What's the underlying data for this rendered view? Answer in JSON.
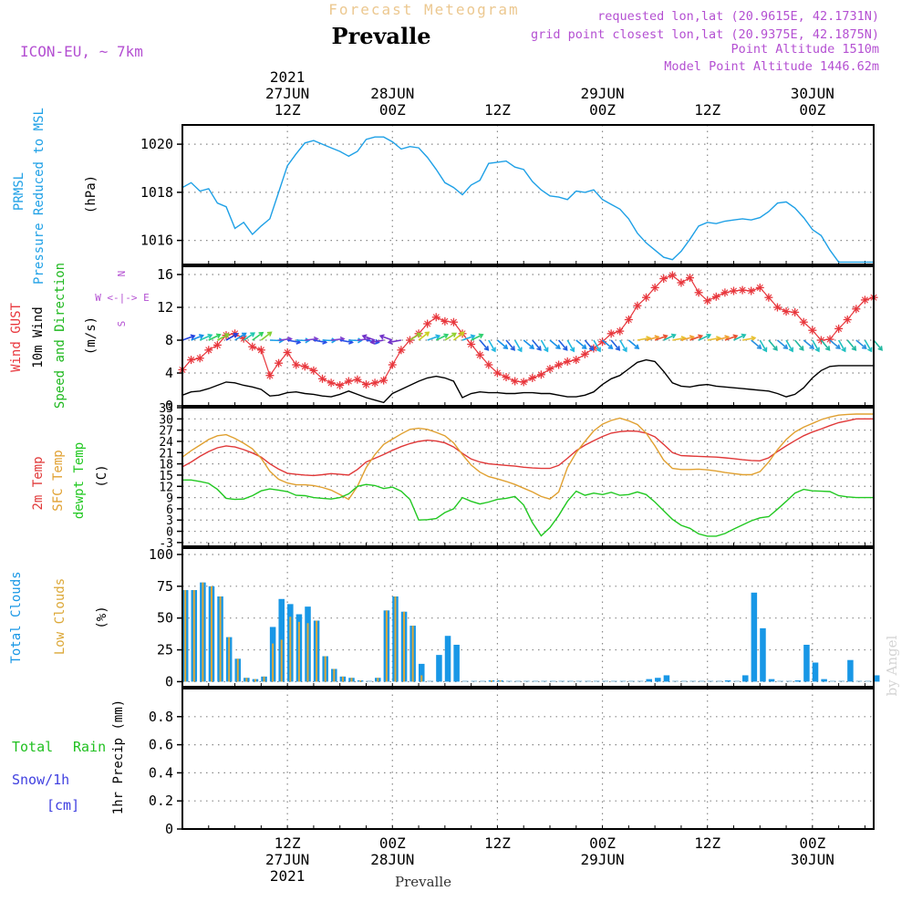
{
  "header": {
    "subtitle": "Forecast Meteogram",
    "title": "Prevalle",
    "model": "ICON-EU, ~ 7km",
    "requested": "requested lon,lat (20.9615E, 42.1731N)",
    "grid": "grid point closest lon,lat (20.9375E, 42.1875N)",
    "point_altitude": "Point Altitude 1510m",
    "model_altitude": "Model Point Altitude 1446.62m",
    "footer": "Prevalle",
    "watermark": "by Angel"
  },
  "colors": {
    "pressure": "#1ea0e6",
    "gust": "#e8363c",
    "wind": "#000000",
    "wind_dir": "#1fb81f",
    "temp2m": "#e03838",
    "sfc": "#e0a030",
    "dewpt": "#22c822",
    "total_clouds": "#1897e6",
    "low_clouds": "#dca838",
    "rain": "#20c020",
    "snow": "#4040e0",
    "meta": "#b450d2",
    "subtitle": "#ecc890"
  },
  "time_axis": {
    "top_labels": [
      {
        "t": 12,
        "lines": [
          "2021",
          "27JUN",
          "12Z"
        ]
      },
      {
        "t": 24,
        "lines": [
          "28JUN",
          "00Z"
        ]
      },
      {
        "t": 36,
        "lines": [
          "12Z"
        ]
      },
      {
        "t": 48,
        "lines": [
          "29JUN",
          "00Z"
        ]
      },
      {
        "t": 60,
        "lines": [
          "12Z"
        ]
      },
      {
        "t": 72,
        "lines": [
          "30JUN",
          "00Z"
        ]
      }
    ],
    "bottom_labels": [
      {
        "t": 12,
        "lines": [
          "12Z",
          "27JUN",
          "2021"
        ]
      },
      {
        "t": 24,
        "lines": [
          "00Z",
          "28JUN"
        ]
      },
      {
        "t": 36,
        "lines": [
          "12Z"
        ]
      },
      {
        "t": 48,
        "lines": [
          "00Z",
          "29JUN"
        ]
      },
      {
        "t": 60,
        "lines": [
          "12Z"
        ]
      },
      {
        "t": 72,
        "lines": [
          "00Z",
          "30JUN"
        ]
      }
    ]
  },
  "panels": {
    "pressure": {
      "label1": "PRMSL",
      "label2": "Pressure Reduced to MSL",
      "unit": "(hPa)"
    },
    "wind": {
      "label1": "Wind GUST",
      "label2": "10m Wind",
      "label3": "Speed and Direction",
      "unit": "(m/s)",
      "compass_n": "N",
      "compass_we": "W <-|-> E",
      "compass_s": "S"
    },
    "temp": {
      "label1": "2m Temp",
      "label2": "SFC Temp",
      "label3": "dewpt Temp",
      "unit": "(C)"
    },
    "clouds": {
      "label1": "Total Clouds",
      "label2": "Low Clouds",
      "unit": "(%)"
    },
    "precip": {
      "label1": "Total",
      "label1b": "Rain",
      "label2": "Snow/1h",
      "label3": "[cm]",
      "unit": "1hr Precip (mm)"
    }
  },
  "chart_data": [
    {
      "type": "line",
      "title": "PRMSL Pressure Reduced to MSL",
      "ylabel": "(hPa)",
      "ylim": [
        1015.0,
        1020.8
      ],
      "yticks": [
        1016,
        1018,
        1020
      ],
      "x_hours": [
        0,
        1,
        2,
        3,
        4,
        5,
        6,
        7,
        8,
        9,
        10,
        11,
        12,
        13,
        14,
        15,
        16,
        17,
        18,
        19,
        20,
        21,
        22,
        23,
        24,
        25,
        26,
        27,
        28,
        29,
        30,
        31,
        32,
        33,
        34,
        35,
        36,
        37,
        38,
        39,
        40,
        41,
        42,
        43,
        44,
        45,
        46,
        47,
        48,
        49,
        50,
        51,
        52,
        53,
        54,
        55,
        56,
        57,
        58,
        59,
        60,
        61,
        62,
        63,
        64,
        65,
        66,
        67,
        68,
        69,
        70,
        71,
        72,
        73,
        74,
        75,
        76,
        77,
        78,
        79
      ],
      "values": [
        1018.2,
        1018.4,
        1018.05,
        1018.15,
        1017.55,
        1017.4,
        1016.5,
        1016.75,
        1016.25,
        1016.6,
        1016.9,
        1018.0,
        1019.1,
        1019.6,
        1020.05,
        1020.15,
        1020.0,
        1019.85,
        1019.7,
        1019.5,
        1019.7,
        1020.2,
        1020.3,
        1020.3,
        1020.1,
        1019.8,
        1019.9,
        1019.85,
        1019.45,
        1018.95,
        1018.4,
        1018.2,
        1017.9,
        1018.3,
        1018.5,
        1019.2,
        1019.25,
        1019.3,
        1019.05,
        1018.95,
        1018.45,
        1018.1,
        1017.85,
        1017.8,
        1017.7,
        1018.05,
        1018.0,
        1018.1,
        1017.7,
        1017.5,
        1017.3,
        1016.9,
        1016.3,
        1015.9,
        1015.6,
        1015.3,
        1015.2,
        1015.55,
        1016.05,
        1016.6,
        1016.75,
        1016.7,
        1016.8,
        1016.85,
        1016.9,
        1016.85,
        1016.95,
        1017.2,
        1017.55,
        1017.6,
        1017.35,
        1016.95,
        1016.45,
        1016.2,
        1015.6,
        1015.1,
        1015.1,
        1015.1,
        1015.1,
        1015.1
      ]
    },
    {
      "type": "line",
      "title": "Wind GUST / 10m Wind Speed and Direction",
      "ylabel": "(m/s)",
      "ylim": [
        0,
        17
      ],
      "yticks": [
        0,
        4,
        8,
        12,
        16
      ],
      "x_hours": [
        0,
        1,
        2,
        3,
        4,
        5,
        6,
        7,
        8,
        9,
        10,
        11,
        12,
        13,
        14,
        15,
        16,
        17,
        18,
        19,
        20,
        21,
        22,
        23,
        24,
        25,
        26,
        27,
        28,
        29,
        30,
        31,
        32,
        33,
        34,
        35,
        36,
        37,
        38,
        39,
        40,
        41,
        42,
        43,
        44,
        45,
        46,
        47,
        48,
        49,
        50,
        51,
        52,
        53,
        54,
        55,
        56,
        57,
        58,
        59,
        60,
        61,
        62,
        63,
        64,
        65,
        66,
        67,
        68,
        69,
        70,
        71,
        72,
        73,
        74,
        75,
        76,
        77,
        78,
        79
      ],
      "series": [
        {
          "name": "Wind GUST",
          "values": [
            4.4,
            5.6,
            5.8,
            6.8,
            7.4,
            8.6,
            8.8,
            8.2,
            7.2,
            6.8,
            3.7,
            5.2,
            6.5,
            5.0,
            4.8,
            4.3,
            3.3,
            2.8,
            2.5,
            3.0,
            3.2,
            2.6,
            2.8,
            3.1,
            5.0,
            6.8,
            8.0,
            8.8,
            10.0,
            10.8,
            10.3,
            10.2,
            8.8,
            7.5,
            6.2,
            5.0,
            4.0,
            3.5,
            3.0,
            2.9,
            3.4,
            3.8,
            4.5,
            5.0,
            5.4,
            5.6,
            6.3,
            7.0,
            7.8,
            8.8,
            9.1,
            10.5,
            12.2,
            13.2,
            14.4,
            15.5,
            15.9,
            15.0,
            15.6,
            13.8,
            12.8,
            13.3,
            13.8,
            14.0,
            14.1,
            14.0,
            14.4,
            13.2,
            12.0,
            11.5,
            11.4,
            10.2,
            9.2,
            8.0,
            8.1,
            9.4,
            10.5,
            11.8,
            12.9,
            13.2
          ]
        },
        {
          "name": "10m Wind",
          "values": [
            1.3,
            1.7,
            1.8,
            2.1,
            2.5,
            2.9,
            2.8,
            2.5,
            2.3,
            2.0,
            1.2,
            1.3,
            1.6,
            1.7,
            1.5,
            1.4,
            1.2,
            1.1,
            1.4,
            1.8,
            1.4,
            1.0,
            0.7,
            0.4,
            1.5,
            2.0,
            2.5,
            3.0,
            3.4,
            3.6,
            3.4,
            3.0,
            1.0,
            1.5,
            1.7,
            1.6,
            1.6,
            1.5,
            1.5,
            1.6,
            1.6,
            1.5,
            1.5,
            1.3,
            1.1,
            1.1,
            1.3,
            1.7,
            2.6,
            3.3,
            3.7,
            4.5,
            5.3,
            5.6,
            5.4,
            4.2,
            2.8,
            2.4,
            2.3,
            2.5,
            2.6,
            2.4,
            2.3,
            2.2,
            2.1,
            2.0,
            1.9,
            1.8,
            1.5,
            1.1,
            1.4,
            2.2,
            3.4,
            4.3,
            4.8,
            4.9,
            4.9,
            4.9,
            4.9,
            4.9
          ]
        }
      ]
    },
    {
      "type": "line",
      "title": "2m Temp / SFC Temp / dewpt Temp",
      "ylabel": "(C)",
      "ylim": [
        -4,
        33
      ],
      "yticks": [
        -3,
        0,
        3,
        6,
        9,
        12,
        15,
        18,
        21,
        24,
        27,
        30,
        33
      ],
      "x_hours": [
        0,
        1,
        2,
        3,
        4,
        5,
        6,
        7,
        8,
        9,
        10,
        11,
        12,
        13,
        14,
        15,
        16,
        17,
        18,
        19,
        20,
        21,
        22,
        23,
        24,
        25,
        26,
        27,
        28,
        29,
        30,
        31,
        32,
        33,
        34,
        35,
        36,
        37,
        38,
        39,
        40,
        41,
        42,
        43,
        44,
        45,
        46,
        47,
        48,
        49,
        50,
        51,
        52,
        53,
        54,
        55,
        56,
        57,
        58,
        59,
        60,
        61,
        62,
        63,
        64,
        65,
        66,
        67,
        68,
        69,
        70,
        71,
        72,
        73,
        74,
        75,
        76,
        77,
        78,
        79
      ],
      "series": [
        {
          "name": "2m Temp",
          "values": [
            17.2,
            18.5,
            20.0,
            21.3,
            22.3,
            22.8,
            22.5,
            21.8,
            20.9,
            19.8,
            18.0,
            16.6,
            15.5,
            15.2,
            15.0,
            14.9,
            15.1,
            15.4,
            15.2,
            15.0,
            16.5,
            18.5,
            19.5,
            20.5,
            21.6,
            22.6,
            23.4,
            24.0,
            24.3,
            24.1,
            23.6,
            22.5,
            20.8,
            19.3,
            18.5,
            18.0,
            17.8,
            17.6,
            17.4,
            17.1,
            16.9,
            16.8,
            16.8,
            17.6,
            19.5,
            21.5,
            23.0,
            24.2,
            25.3,
            26.2,
            26.6,
            26.8,
            26.7,
            26.2,
            25.2,
            23.2,
            21.0,
            20.2,
            20.1,
            20.0,
            19.9,
            19.8,
            19.6,
            19.4,
            19.1,
            18.9,
            18.8,
            19.6,
            21.3,
            22.8,
            24.2,
            25.5,
            26.5,
            27.3,
            28.2,
            29.0,
            29.5,
            30.0,
            30.0,
            30.0
          ]
        },
        {
          "name": "SFC Temp",
          "values": [
            19.8,
            21.5,
            23.0,
            24.5,
            25.5,
            25.8,
            24.8,
            23.5,
            22.0,
            19.5,
            16.0,
            13.9,
            12.9,
            12.4,
            12.4,
            12.2,
            11.7,
            11.0,
            9.8,
            8.5,
            12.0,
            17.0,
            20.5,
            23.2,
            24.6,
            26.0,
            27.2,
            27.5,
            27.2,
            26.4,
            25.5,
            23.6,
            20.5,
            17.7,
            15.8,
            14.6,
            14.0,
            13.3,
            12.5,
            11.5,
            10.5,
            9.3,
            8.6,
            10.5,
            17.0,
            21.0,
            24.0,
            26.8,
            28.6,
            29.6,
            30.2,
            29.5,
            28.5,
            26.2,
            22.8,
            19.0,
            16.8,
            16.5,
            16.5,
            16.6,
            16.4,
            16.1,
            15.7,
            15.4,
            15.1,
            15.1,
            15.9,
            18.5,
            21.8,
            24.5,
            26.5,
            27.8,
            28.8,
            29.8,
            30.5,
            31.0,
            31.2,
            31.3,
            31.3,
            31.3
          ]
        },
        {
          "name": "dewpt Temp",
          "values": [
            13.7,
            13.7,
            13.3,
            12.8,
            11.2,
            8.8,
            8.5,
            8.6,
            9.5,
            10.8,
            11.3,
            11.0,
            10.6,
            9.6,
            9.5,
            9.0,
            8.8,
            8.6,
            9.0,
            10.0,
            12.0,
            12.5,
            12.2,
            11.4,
            11.8,
            10.7,
            8.5,
            3.0,
            3.1,
            3.4,
            5.0,
            6.0,
            9.0,
            8.0,
            7.3,
            7.8,
            8.5,
            8.8,
            9.3,
            7.0,
            2.3,
            -1.2,
            1.0,
            4.2,
            8.0,
            10.7,
            9.6,
            10.2,
            9.8,
            10.4,
            9.6,
            9.8,
            10.5,
            9.8,
            7.8,
            5.5,
            3.2,
            1.6,
            0.8,
            -0.7,
            -1.3,
            -1.3,
            -0.6,
            0.6,
            1.7,
            2.8,
            3.6,
            3.9,
            5.9,
            8.0,
            10.2,
            11.2,
            10.8,
            10.7,
            10.6,
            9.5,
            9.2,
            9.0,
            9.0,
            9.0
          ]
        }
      ]
    },
    {
      "type": "bar",
      "title": "Total Clouds / Low Clouds",
      "ylabel": "(%)",
      "ylim": [
        -4,
        105
      ],
      "yticks": [
        0,
        25,
        50,
        75,
        100
      ],
      "x_hours": [
        0,
        1,
        2,
        3,
        4,
        5,
        6,
        7,
        8,
        9,
        10,
        11,
        12,
        13,
        14,
        15,
        16,
        17,
        18,
        19,
        20,
        21,
        22,
        23,
        24,
        25,
        26,
        27,
        28,
        29,
        30,
        31,
        32,
        33,
        34,
        35,
        36,
        37,
        38,
        39,
        40,
        41,
        42,
        43,
        44,
        45,
        46,
        47,
        48,
        49,
        50,
        51,
        52,
        53,
        54,
        55,
        56,
        57,
        58,
        59,
        60,
        61,
        62,
        63,
        64,
        65,
        66,
        67,
        68,
        69,
        70,
        71,
        72,
        73,
        74,
        75,
        76,
        77,
        78,
        79
      ],
      "series": [
        {
          "name": "Total Clouds",
          "values": [
            72,
            72,
            78,
            75,
            67,
            35,
            18,
            3,
            2,
            4,
            43,
            65,
            61,
            53,
            59,
            48,
            20,
            10,
            4,
            3,
            1,
            0,
            3,
            56,
            67,
            55,
            44,
            14,
            0,
            21,
            36,
            29,
            0,
            0,
            0,
            1,
            1,
            0,
            0,
            0,
            0,
            0,
            0,
            0,
            0,
            0,
            0,
            0,
            0,
            0,
            0,
            0,
            0,
            2,
            3,
            5,
            0,
            0,
            0,
            0,
            0,
            0,
            1,
            0,
            5,
            70,
            42,
            2,
            0,
            0,
            1,
            29,
            15,
            2,
            0,
            0,
            17,
            0,
            0,
            5
          ]
        },
        {
          "name": "Low Clouds",
          "values": [
            72,
            72,
            78,
            75,
            67,
            35,
            18,
            3,
            2,
            4,
            30,
            33,
            51,
            47,
            46,
            48,
            20,
            10,
            4,
            3,
            1,
            0,
            3,
            56,
            67,
            55,
            44,
            5,
            0,
            0,
            0,
            0,
            0,
            0,
            0,
            1,
            1,
            0,
            0,
            0,
            0,
            0,
            0,
            0,
            0,
            0,
            0,
            0,
            0,
            0,
            0,
            0,
            0,
            0,
            0,
            0,
            0,
            0,
            0,
            0,
            0,
            0,
            0,
            0,
            0,
            0,
            0,
            0,
            0,
            0,
            0,
            0,
            0,
            0,
            0,
            0,
            0,
            0,
            0,
            0
          ]
        }
      ]
    },
    {
      "type": "bar",
      "title": "1hr Precip",
      "ylabel": "1hr Precip (mm)",
      "ylim": [
        0,
        1.0
      ],
      "yticks": [
        0,
        0.2,
        0.4,
        0.6,
        0.8
      ],
      "ytick_labels": [
        "0",
        "0.2",
        "0.4",
        "0.6",
        "0.8"
      ],
      "series": [
        {
          "name": "Total Rain",
          "values": []
        },
        {
          "name": "Snow/1h",
          "values": []
        }
      ]
    }
  ]
}
